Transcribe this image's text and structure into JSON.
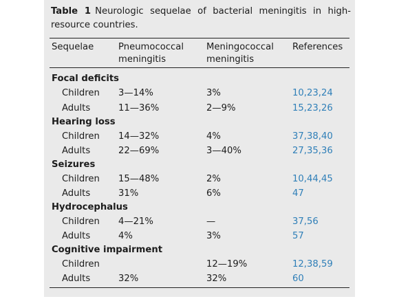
{
  "caption": {
    "number": "Table 1",
    "text": "Neurologic sequelae of bacterial meningitis in high-resource countries."
  },
  "headers": {
    "sequelae": "Sequelae",
    "pneumococcal": "Pneumococcal meningitis",
    "meningococcal": "Meningococcal meningitis",
    "references": "References"
  },
  "groups": [
    {
      "title": "Focal deficits",
      "rows": [
        {
          "label": "Children",
          "pneumococcal": "3—14%",
          "meningococcal": "3%",
          "references": "10,23,24"
        },
        {
          "label": "Adults",
          "pneumococcal": "11—36%",
          "meningococcal": "2—9%",
          "references": "15,23,26"
        }
      ]
    },
    {
      "title": "Hearing loss",
      "rows": [
        {
          "label": "Children",
          "pneumococcal": "14—32%",
          "meningococcal": "4%",
          "references": "37,38,40"
        },
        {
          "label": "Adults",
          "pneumococcal": "22—69%",
          "meningococcal": "3—40%",
          "references": "27,35,36"
        }
      ]
    },
    {
      "title": "Seizures",
      "rows": [
        {
          "label": "Children",
          "pneumococcal": "15—48%",
          "meningococcal": "2%",
          "references": "10,44,45"
        },
        {
          "label": "Adults",
          "pneumococcal": "31%",
          "meningococcal": "6%",
          "references": "47"
        }
      ]
    },
    {
      "title": "Hydrocephalus",
      "rows": [
        {
          "label": "Children",
          "pneumococcal": "4—21%",
          "meningococcal": "—",
          "references": "37,56"
        },
        {
          "label": "Adults",
          "pneumococcal": "4%",
          "meningococcal": "3%",
          "references": "57"
        }
      ]
    },
    {
      "title": "Cognitive impairment",
      "rows": [
        {
          "label": "Children",
          "pneumococcal": "",
          "meningococcal": "12—19%",
          "references": "12,38,59"
        },
        {
          "label": "Adults",
          "pneumococcal": "32%",
          "meningococcal": "32%",
          "references": "60"
        }
      ]
    }
  ]
}
